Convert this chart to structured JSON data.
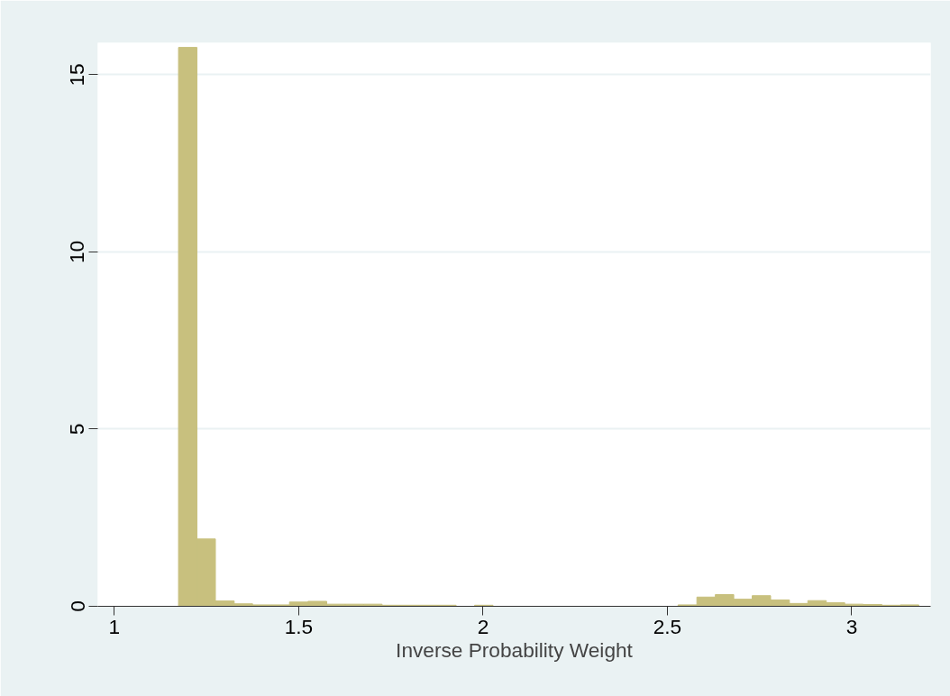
{
  "chart_data": {
    "type": "histogram",
    "xlabel": "Inverse Probability Weight",
    "color": "#c8c07e",
    "bins": [
      1.174,
      1.224,
      1.274,
      1.325,
      1.375,
      1.425,
      1.475,
      1.525,
      1.576,
      1.626,
      1.676,
      1.726,
      1.776,
      1.827,
      1.877,
      1.927,
      1.977,
      2.027,
      2.078,
      2.128,
      2.178,
      2.228,
      2.278,
      2.329,
      2.379,
      2.429,
      2.479,
      2.529,
      2.58,
      2.63,
      2.68,
      2.73,
      2.78,
      2.831,
      2.881,
      2.931,
      2.981,
      3.031,
      3.082,
      3.132,
      3.182
    ],
    "values": [
      15.77,
      1.9,
      0.15,
      0.07,
      0.04,
      0.04,
      0.12,
      0.14,
      0.06,
      0.06,
      0.06,
      0.03,
      0.03,
      0.03,
      0.03,
      0,
      0.03,
      0,
      0,
      0,
      0,
      0,
      0,
      0,
      0,
      0,
      0,
      0.04,
      0.26,
      0.33,
      0.2,
      0.3,
      0.18,
      0.08,
      0.16,
      0.1,
      0.06,
      0.05,
      0.03,
      0.04
    ],
    "xlim": [
      0.955,
      3.214
    ],
    "ylim": [
      0,
      15.9
    ],
    "xticks": [
      1,
      1.5,
      2,
      2.5,
      3
    ],
    "yticks": [
      0,
      5,
      10,
      15
    ],
    "grid": "y"
  }
}
